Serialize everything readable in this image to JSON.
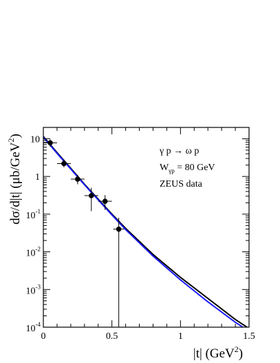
{
  "chart_data": {
    "type": "scatter",
    "title": "",
    "xlabel": "|t| (GeV",
    "xlabel_sup": "2",
    "xlabel_close": ")",
    "ylabel": "dσ/d|t| (μb/GeV",
    "ylabel_sup": "2",
    "ylabel_close": ")",
    "xlim": [
      0,
      1.5
    ],
    "ylim": [
      0.0001,
      20
    ],
    "yscale": "log",
    "grid": false,
    "x_ticks": [
      {
        "value": 0,
        "label": "0"
      },
      {
        "value": 0.5,
        "label": "0.5"
      },
      {
        "value": 1.0,
        "label": "1"
      },
      {
        "value": 1.5,
        "label": "1.5"
      }
    ],
    "y_ticks": [
      {
        "value": 10,
        "label": "10"
      },
      {
        "value": 1,
        "label": "1"
      },
      {
        "value": 0.1,
        "label": "10",
        "exp": "-1"
      },
      {
        "value": 0.01,
        "label": "10",
        "exp": "-2"
      },
      {
        "value": 0.001,
        "label": "10",
        "exp": "-3"
      },
      {
        "value": 0.0001,
        "label": "10",
        "exp": "-4"
      }
    ],
    "annotations": {
      "reaction": "γ p → ω p",
      "energy_label": "W",
      "energy_sub": "γp",
      "energy_value": " = 80 GeV",
      "dataset": "ZEUS data"
    },
    "series": [
      {
        "kind": "points",
        "color": "#000000",
        "points": [
          {
            "x": 0.05,
            "y": 7.8,
            "xerr": 0.05,
            "ylo": 6.2,
            "yhi": 9.6
          },
          {
            "x": 0.15,
            "y": 2.2,
            "xerr": 0.05,
            "ylo": 1.75,
            "yhi": 2.8
          },
          {
            "x": 0.25,
            "y": 0.85,
            "xerr": 0.05,
            "ylo": 0.62,
            "yhi": 1.1
          },
          {
            "x": 0.35,
            "y": 0.31,
            "xerr": 0.05,
            "ylo": 0.12,
            "yhi": 0.5
          },
          {
            "x": 0.45,
            "y": 0.22,
            "xerr": 0.05,
            "ylo": 0.13,
            "yhi": 0.32
          },
          {
            "x": 0.55,
            "y": 0.04,
            "xerr": 0.04,
            "ylo": 0.0001,
            "yhi": 0.08
          }
        ]
      },
      {
        "kind": "curve",
        "color": "#000000",
        "points": [
          [
            0,
            11.5
          ],
          [
            0.1,
            4.3
          ],
          [
            0.2,
            1.65
          ],
          [
            0.3,
            0.62
          ],
          [
            0.4,
            0.25
          ],
          [
            0.5,
            0.1
          ],
          [
            0.6,
            0.042
          ],
          [
            0.8,
            0.0085
          ],
          [
            1.0,
            0.0021
          ],
          [
            1.2,
            0.00058
          ],
          [
            1.4,
            0.00016
          ],
          [
            1.485,
            0.0001
          ]
        ]
      },
      {
        "kind": "curve",
        "color": "#1a1aff",
        "points": [
          [
            0,
            11.0
          ],
          [
            0.1,
            4.1
          ],
          [
            0.2,
            1.58
          ],
          [
            0.3,
            0.6
          ],
          [
            0.4,
            0.24
          ],
          [
            0.5,
            0.095
          ],
          [
            0.6,
            0.039
          ],
          [
            0.8,
            0.0077
          ],
          [
            1.0,
            0.0018
          ],
          [
            1.2,
            0.00047
          ],
          [
            1.4,
            0.000135
          ],
          [
            1.455,
            0.0001
          ]
        ]
      }
    ]
  }
}
